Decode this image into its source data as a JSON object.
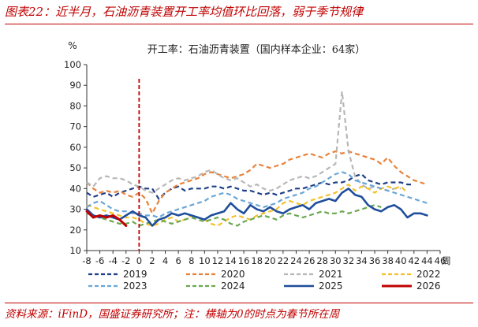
{
  "header": {
    "title": "图表22：近半月，石油沥青装置开工率均值环比回落，弱于季节规律"
  },
  "footer": {
    "source": "资料来源：iFinD，国盛证券研究所；注：横轴为0的时点为春节所在周"
  },
  "chart_data": {
    "type": "line",
    "title": "开工率：石油沥青装置（国内样本企业：64家）",
    "ylabel": "%",
    "xlabel": "周",
    "ylim": [
      10,
      100
    ],
    "yticks": [
      10,
      20,
      30,
      40,
      50,
      60,
      70,
      80,
      90,
      100
    ],
    "xlim": [
      -8,
      46
    ],
    "xticks": [
      -8,
      -6,
      -4,
      -2,
      0,
      2,
      4,
      6,
      8,
      10,
      12,
      14,
      16,
      18,
      20,
      22,
      24,
      26,
      28,
      30,
      32,
      34,
      36,
      38,
      40,
      42,
      44,
      46
    ],
    "vline": {
      "x": 0,
      "color": "#c00000",
      "style": "dashed"
    },
    "grid": false,
    "legend_position": "bottom",
    "series": [
      {
        "name": "2019",
        "color": "#1f3f87",
        "dash": "6,4",
        "width": 2.2,
        "x_start": -8,
        "values": [
          38,
          36,
          37,
          38,
          36,
          38,
          39,
          40,
          41,
          40,
          40,
          35,
          38,
          40,
          41,
          39,
          40,
          40,
          40,
          41,
          41,
          40,
          41,
          40,
          39,
          39,
          38,
          37,
          38,
          37,
          38,
          39,
          40,
          40,
          41,
          42,
          43,
          42,
          43,
          43,
          44,
          46,
          47,
          44,
          43,
          42,
          43,
          43,
          43,
          42,
          42
        ]
      },
      {
        "name": "2020",
        "color": "#e8823a",
        "dash": "6,4",
        "width": 2.2,
        "x_start": -8,
        "values": [
          43,
          40,
          38,
          39,
          38,
          39,
          37,
          36,
          38,
          35,
          28,
          34,
          38,
          40,
          42,
          43,
          44,
          45,
          47,
          48,
          47,
          46,
          45,
          46,
          47,
          49,
          52,
          51,
          50,
          51,
          52,
          54,
          55,
          56,
          57,
          56,
          55,
          57,
          58,
          57,
          58,
          57,
          56,
          55,
          54,
          52,
          55,
          51,
          48,
          46,
          44,
          43,
          42
        ]
      },
      {
        "name": "2021",
        "color": "#b7b7b7",
        "dash": "6,4",
        "width": 2.2,
        "x_start": -8,
        "values": [
          43,
          41,
          45,
          46,
          45,
          45,
          44,
          42,
          41,
          39,
          38,
          40,
          42,
          44,
          45,
          44,
          45,
          46,
          48,
          49,
          47,
          45,
          44,
          45,
          43,
          41,
          42,
          40,
          39,
          40,
          42,
          44,
          45,
          46,
          45,
          46,
          48,
          50,
          52,
          87,
          58,
          46,
          42,
          40,
          41,
          40,
          39,
          40,
          40
        ]
      },
      {
        "name": "2022",
        "color": "#f2c12e",
        "dash": "6,4",
        "width": 2.2,
        "x_start": -8,
        "values": [
          32,
          31,
          30,
          29,
          28,
          27,
          26,
          26,
          25,
          23,
          22,
          23,
          25,
          26,
          24,
          25,
          27,
          26,
          25,
          23,
          22,
          24,
          26,
          27,
          26,
          25,
          27,
          28,
          29,
          30,
          33,
          34,
          33,
          32,
          34,
          35,
          36,
          37,
          38,
          40,
          42,
          39,
          41,
          40,
          38,
          40,
          41,
          40,
          41,
          38
        ]
      },
      {
        "name": "2023",
        "color": "#6aa6d6",
        "dash": "6,4",
        "width": 2.2,
        "x_start": -8,
        "values": [
          31,
          33,
          34,
          32,
          30,
          29,
          29,
          28,
          28,
          27,
          27,
          26,
          28,
          29,
          30,
          31,
          32,
          33,
          34,
          36,
          37,
          38,
          37,
          35,
          34,
          33,
          32,
          31,
          32,
          33,
          35,
          36,
          37,
          38,
          40,
          41,
          43,
          45,
          47,
          48,
          47,
          44,
          43,
          42,
          41,
          40,
          39,
          38,
          37,
          36,
          35,
          34,
          33
        ]
      },
      {
        "name": "2024",
        "color": "#6aa84f",
        "dash": "6,4",
        "width": 2.2,
        "x_start": -8,
        "values": [
          28,
          27,
          26,
          25,
          24,
          23,
          23,
          24,
          22,
          23,
          24,
          25,
          24,
          23,
          24,
          25,
          26,
          25,
          24,
          25,
          26,
          25,
          23,
          22,
          24,
          25,
          26,
          27,
          26,
          25,
          27,
          28,
          27,
          26,
          27,
          28,
          29,
          28,
          28,
          29,
          28,
          29,
          30,
          31,
          32,
          31
        ]
      },
      {
        "name": "2025",
        "color": "#1f4e9c",
        "dash": "",
        "width": 2.6,
        "x_start": -8,
        "values": [
          30,
          27,
          26,
          27,
          26,
          25,
          27,
          29,
          27,
          26,
          22,
          25,
          26,
          28,
          27,
          28,
          27,
          26,
          25,
          27,
          28,
          29,
          33,
          30,
          28,
          32,
          30,
          29,
          31,
          29,
          28,
          30,
          31,
          32,
          30,
          33,
          34,
          35,
          34,
          38,
          40,
          37,
          36,
          32,
          30,
          29,
          31,
          32,
          30,
          26,
          28,
          28,
          27
        ]
      },
      {
        "name": "2026",
        "color": "#c00000",
        "dash": "",
        "width": 3,
        "x_start": -8,
        "values": [
          29,
          26,
          27,
          26,
          27,
          25,
          22
        ]
      }
    ]
  }
}
